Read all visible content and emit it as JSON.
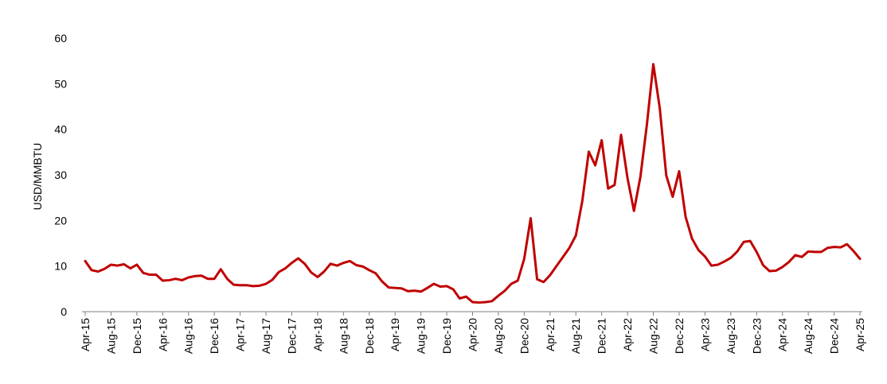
{
  "chart_data": {
    "type": "line",
    "title": "",
    "xlabel": "",
    "ylabel": "USD/MMBTU",
    "ylim": [
      0,
      60
    ],
    "yticks": [
      0,
      10,
      20,
      30,
      40,
      50,
      60
    ],
    "grid": false,
    "legend": "none",
    "x_tick_labels": [
      "Apr-15",
      "Aug-15",
      "Dec-15",
      "Apr-16",
      "Aug-16",
      "Dec-16",
      "Apr-17",
      "Aug-17",
      "Dec-17",
      "Apr-18",
      "Aug-18",
      "Dec-18",
      "Apr-19",
      "Aug-19",
      "Dec-19",
      "Apr-20",
      "Aug-20",
      "Dec-20",
      "Apr-21",
      "Aug-21",
      "Dec-21",
      "Apr-22",
      "Aug-22",
      "Dec-22",
      "Apr-23",
      "Aug-23",
      "Dec-23",
      "Apr-24",
      "Aug-24",
      "Dec-24",
      "Apr-25"
    ],
    "x_start": "Apr-15",
    "x_step_months": 1,
    "series": [
      {
        "name": "USD/MMBTU",
        "color": "#c00000",
        "values": [
          11.1,
          9.1,
          8.8,
          9.4,
          10.3,
          10.1,
          10.4,
          9.5,
          10.3,
          8.5,
          8.1,
          8.1,
          6.8,
          6.9,
          7.2,
          6.9,
          7.5,
          7.8,
          7.9,
          7.2,
          7.2,
          9.3,
          7.2,
          5.9,
          5.8,
          5.8,
          5.6,
          5.7,
          6.1,
          7.0,
          8.7,
          9.5,
          10.7,
          11.7,
          10.5,
          8.6,
          7.6,
          8.8,
          10.5,
          10.1,
          10.7,
          11.1,
          10.2,
          9.9,
          9.1,
          8.4,
          6.6,
          5.3,
          5.2,
          5.1,
          4.5,
          4.6,
          4.4,
          5.2,
          6.1,
          5.5,
          5.6,
          4.9,
          2.9,
          3.3,
          2.1,
          2.0,
          2.1,
          2.3,
          3.5,
          4.6,
          6.1,
          6.8,
          11.6,
          20.5,
          7.1,
          6.5,
          8.0,
          10.0,
          12.0,
          14.0,
          16.7,
          24.3,
          35.1,
          32.1,
          37.6,
          27.0,
          27.8,
          38.8,
          29.3,
          22.1,
          29.6,
          41.0,
          54.3,
          44.6,
          29.9,
          25.2,
          30.8,
          20.8,
          16.0,
          13.5,
          12.1,
          10.1,
          10.3,
          11.0,
          11.8,
          13.2,
          15.3,
          15.5,
          13.1,
          10.2,
          8.9,
          9.0,
          9.8,
          10.9,
          12.4,
          12.0,
          13.2,
          13.1,
          13.1,
          14.0,
          14.2,
          14.1,
          14.8,
          13.3,
          11.6
        ]
      }
    ]
  }
}
